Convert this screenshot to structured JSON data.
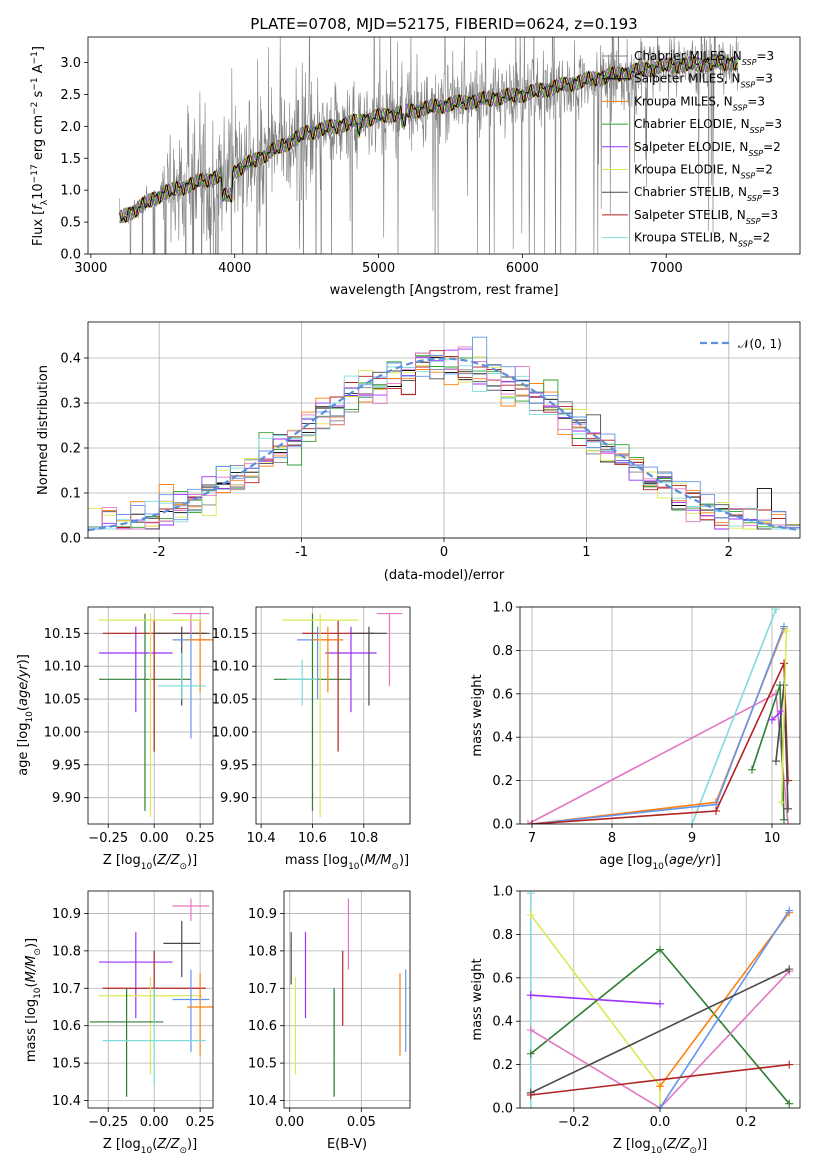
{
  "chart_data": [
    {
      "id": "spectrum",
      "type": "line",
      "title": "PLATE=0708, MJD=52175, FIBERID=0624, z=0.193",
      "xlabel": "wavelength [Angstrom, rest frame]",
      "ylabel": "Flux [$f_\\lambda 10^{-17}$ erg cm$^{-2}$ s$^{-1}$ A$^{-1}$]",
      "ylabel_text": "Flux [fλ10⁻¹⁷ erg cm⁻² s⁻¹ A⁻¹]",
      "xlim": [
        2980,
        7930
      ],
      "ylim": [
        0,
        3.4
      ],
      "xticks": [
        3000,
        4000,
        5000,
        6000,
        7000
      ],
      "yticks": [
        0.0,
        0.5,
        1.0,
        1.5,
        2.0,
        2.5,
        3.0
      ],
      "legend_loc": "upper right",
      "series": [
        {
          "name": "Chabrier MILES, N$_{SSP}$=3",
          "label": "Chabrier MILES, N",
          "sub": "SSP",
          "eq": "=3",
          "color": "#808080"
        },
        {
          "name": "Salpeter MILES, N$_{SSP}$=3",
          "label": "Salpeter MILES, N",
          "sub": "SSP",
          "eq": "=3",
          "color": "#000000"
        },
        {
          "name": "Kroupa MILES, N$_{SSP}$=3",
          "label": "Kroupa MILES, N",
          "sub": "SSP",
          "eq": "=3",
          "color": "#ff7f0e"
        },
        {
          "name": "Chabrier ELODIE, N$_{SSP}$=3",
          "label": "Chabrier ELODIE, N",
          "sub": "SSP",
          "eq": "=3",
          "color": "#2ca02c"
        },
        {
          "name": "Salpeter ELODIE, N$_{SSP}$=2",
          "label": "Salpeter ELODIE, N",
          "sub": "SSP",
          "eq": "=2",
          "color": "#9b30ff"
        },
        {
          "name": "Kroupa ELODIE, N$_{SSP}$=2",
          "label": "Kroupa ELODIE, N",
          "sub": "SSP",
          "eq": "=2",
          "color": "#dbe855"
        },
        {
          "name": "Chabrier STELIB, N$_{SSP}$=3",
          "label": "Chabrier STELIB, N",
          "sub": "SSP",
          "eq": "=3",
          "color": "#4a4a4a"
        },
        {
          "name": "Salpeter STELIB, N$_{SSP}$=3",
          "label": "Salpeter STELIB, N",
          "sub": "SSP",
          "eq": "=3",
          "color": "#b22222"
        },
        {
          "name": "Kroupa STELIB, N$_{SSP}$=2",
          "label": "Kroupa STELIB, N",
          "sub": "SSP",
          "eq": "=2",
          "color": "#7fdcdc"
        }
      ],
      "continuum": {
        "x": [
          3200,
          3500,
          4000,
          4500,
          5000,
          5500,
          6000,
          6500,
          7000,
          7500
        ],
        "y": [
          0.55,
          0.95,
          1.3,
          1.9,
          2.15,
          2.35,
          2.5,
          2.75,
          2.95,
          3.0
        ]
      }
    },
    {
      "id": "residuals",
      "type": "step-histogram",
      "xlabel": "(data-model)/error",
      "ylabel": "Normed distribution",
      "xlim": [
        -2.5,
        2.5
      ],
      "ylim": [
        0,
        0.48
      ],
      "xticks": [
        -2,
        -1,
        0,
        1,
        2
      ],
      "yticks": [
        0.0,
        0.1,
        0.2,
        0.3,
        0.4
      ],
      "grid": true,
      "legend_loc": "upper right",
      "reference": {
        "name": "$\\mathcal{N}(0,1)$",
        "label": "𝒩(0, 1)",
        "color": "#5b8fd9",
        "style": "dashed"
      },
      "bin_width": 0.1,
      "bins_start": -2.5,
      "hist_colors": [
        "#808080",
        "#000000",
        "#ff7f0e",
        "#2ca02c",
        "#9b30ff",
        "#dbe855",
        "#4a4a4a",
        "#b22222",
        "#7fdcdc",
        "#e377c2",
        "#6495ed"
      ]
    },
    {
      "id": "age-vs-Z",
      "type": "errorbar",
      "xlabel": "Z [log$_{10}$(Z/Z$_\\odot$)]",
      "ylabel": "age [log$_{10}$(age/yr)]",
      "xlim": [
        -0.36,
        0.32
      ],
      "ylim": [
        9.86,
        10.19
      ],
      "xticks": [
        -0.25,
        0.0,
        0.25
      ],
      "xticklabels": [
        "−0.25",
        "0.00",
        "0.25"
      ],
      "yticks": [
        9.9,
        9.95,
        10.0,
        10.05,
        10.1,
        10.15
      ],
      "grid": true,
      "points": [
        {
          "x": -0.05,
          "y": 10.08,
          "xerr": 0.25,
          "ylo": 9.88,
          "yhi": 10.18,
          "color": "#2e7d32"
        },
        {
          "x": -0.1,
          "y": 10.12,
          "xerr": 0.2,
          "ylo": 10.03,
          "yhi": 10.16,
          "color": "#9b30ff"
        },
        {
          "x": 0.0,
          "y": 10.15,
          "xerr": 0.28,
          "ylo": 9.97,
          "yhi": 10.17,
          "color": "#b22222"
        },
        {
          "x": 0.15,
          "y": 10.15,
          "xerr": 0.15,
          "ylo": 10.04,
          "yhi": 10.16,
          "color": "#4a4a4a"
        },
        {
          "x": 0.2,
          "y": 10.14,
          "xerr": 0.1,
          "ylo": 9.99,
          "yhi": 10.17,
          "color": "#6495ed"
        },
        {
          "x": 0.2,
          "y": 10.18,
          "xerr": 0.1,
          "ylo": 10.15,
          "yhi": 10.18,
          "color": "#e377c2"
        },
        {
          "x": 0.25,
          "y": 10.14,
          "xerr": 0.07,
          "ylo": 10.06,
          "yhi": 10.17,
          "color": "#ff7f0e"
        },
        {
          "x": -0.02,
          "y": 10.17,
          "xerr": 0.28,
          "ylo": 9.87,
          "yhi": 10.18,
          "color": "#dbe855"
        },
        {
          "x": 0.15,
          "y": 10.07,
          "xerr": 0.13,
          "ylo": 10.05,
          "yhi": 10.12,
          "color": "#7fdcdc"
        }
      ]
    },
    {
      "id": "age-vs-mass",
      "type": "errorbar",
      "xlabel": "mass [log$_{10}$(M/M$_\\odot$)]",
      "ylabel": "",
      "xlim": [
        10.38,
        10.98
      ],
      "ylim": [
        9.86,
        10.19
      ],
      "xticks": [
        10.4,
        10.6,
        10.8
      ],
      "yticks": [
        9.9,
        9.95,
        10.0,
        10.05,
        10.1,
        10.15
      ],
      "grid": true,
      "points": [
        {
          "x": 10.6,
          "y": 10.08,
          "xerr": 0.15,
          "ylo": 9.88,
          "yhi": 10.18,
          "color": "#2e7d32"
        },
        {
          "x": 10.75,
          "y": 10.12,
          "xerr": 0.1,
          "ylo": 10.03,
          "yhi": 10.16,
          "color": "#9b30ff"
        },
        {
          "x": 10.7,
          "y": 10.15,
          "xerr": 0.14,
          "ylo": 9.97,
          "yhi": 10.17,
          "color": "#b22222"
        },
        {
          "x": 10.82,
          "y": 10.15,
          "xerr": 0.07,
          "ylo": 10.04,
          "yhi": 10.16,
          "color": "#4a4a4a"
        },
        {
          "x": 10.62,
          "y": 10.14,
          "xerr": 0.08,
          "ylo": 10.05,
          "yhi": 10.16,
          "color": "#6495ed"
        },
        {
          "x": 10.9,
          "y": 10.18,
          "xerr": 0.05,
          "ylo": 10.07,
          "yhi": 10.18,
          "color": "#e377c2"
        },
        {
          "x": 10.66,
          "y": 10.14,
          "xerr": 0.06,
          "ylo": 10.06,
          "yhi": 10.16,
          "color": "#ff7f0e"
        },
        {
          "x": 10.63,
          "y": 10.17,
          "xerr": 0.15,
          "ylo": 9.87,
          "yhi": 10.18,
          "color": "#dbe855"
        },
        {
          "x": 10.56,
          "y": 10.08,
          "xerr": 0.06,
          "ylo": 10.04,
          "yhi": 10.11,
          "color": "#7fdcdc"
        }
      ]
    },
    {
      "id": "mass-weight-vs-age",
      "type": "line",
      "xlabel": "age [log$_{10}$(age/yr)]",
      "ylabel": "mass weight",
      "xlim": [
        6.85,
        10.35
      ],
      "ylim": [
        0,
        1.0
      ],
      "xticks": [
        7,
        8,
        9,
        10
      ],
      "yticks": [
        0.0,
        0.2,
        0.4,
        0.6,
        0.8,
        1.0
      ],
      "grid": true,
      "series": [
        {
          "color": "#e377c2",
          "x": [
            6.95,
            10.05,
            10.2
          ],
          "y": [
            0.0,
            0.6,
            0.0
          ]
        },
        {
          "color": "#7fdcdc",
          "x": [
            9.0,
            10.05
          ],
          "y": [
            0.0,
            0.99
          ]
        },
        {
          "color": "#ff7f0e",
          "x": [
            7.0,
            9.3,
            10.15
          ],
          "y": [
            0.0,
            0.1,
            0.9
          ]
        },
        {
          "color": "#6495ed",
          "x": [
            7.0,
            9.3,
            10.15
          ],
          "y": [
            0.0,
            0.09,
            0.91
          ]
        },
        {
          "color": "#b22222",
          "x": [
            7.0,
            9.3,
            10.15,
            10.2
          ],
          "y": [
            0.0,
            0.06,
            0.74,
            0.2
          ]
        },
        {
          "color": "#2e7d32",
          "x": [
            9.75,
            10.1,
            10.15
          ],
          "y": [
            0.25,
            0.64,
            0.02
          ]
        },
        {
          "color": "#4a4a4a",
          "x": [
            10.05,
            10.15,
            10.2
          ],
          "y": [
            0.29,
            0.64,
            0.07
          ]
        },
        {
          "color": "#9b30ff",
          "x": [
            10.0,
            10.12
          ],
          "y": [
            0.48,
            0.52
          ]
        },
        {
          "color": "#dbe855",
          "x": [
            10.12,
            10.18
          ],
          "y": [
            0.1,
            0.89
          ]
        }
      ]
    },
    {
      "id": "mass-vs-Z",
      "type": "errorbar",
      "xlabel": "Z [log$_{10}$(Z/Z$_\\odot$)]",
      "ylabel": "mass [log$_{10}$(M/M$_\\odot$)]",
      "xlim": [
        -0.36,
        0.32
      ],
      "ylim": [
        10.38,
        10.96
      ],
      "xticks": [
        -0.25,
        0.0,
        0.25
      ],
      "xticklabels": [
        "−0.25",
        "0.00",
        "0.25"
      ],
      "yticks": [
        10.4,
        10.5,
        10.6,
        10.7,
        10.8,
        10.9
      ],
      "grid": true,
      "points": [
        {
          "x": -0.1,
          "y": 10.77,
          "xerr": 0.2,
          "ylo": 10.62,
          "yhi": 10.85,
          "color": "#9b30ff"
        },
        {
          "x": 0.15,
          "y": 10.82,
          "xerr": 0.1,
          "ylo": 10.73,
          "yhi": 10.88,
          "color": "#4a4a4a"
        },
        {
          "x": 0.2,
          "y": 10.92,
          "xerr": 0.1,
          "ylo": 10.88,
          "yhi": 10.94,
          "color": "#e377c2"
        },
        {
          "x": 0.0,
          "y": 10.7,
          "xerr": 0.28,
          "ylo": 10.61,
          "yhi": 10.8,
          "color": "#b22222"
        },
        {
          "x": -0.02,
          "y": 10.68,
          "xerr": 0.28,
          "ylo": 10.47,
          "yhi": 10.73,
          "color": "#dbe855"
        },
        {
          "x": -0.15,
          "y": 10.61,
          "xerr": 0.2,
          "ylo": 10.41,
          "yhi": 10.7,
          "color": "#2e7d32"
        },
        {
          "x": 0.2,
          "y": 10.67,
          "xerr": 0.1,
          "ylo": 10.53,
          "yhi": 10.75,
          "color": "#6495ed"
        },
        {
          "x": 0.25,
          "y": 10.65,
          "xerr": 0.07,
          "ylo": 10.52,
          "yhi": 10.74,
          "color": "#ff7f0e"
        },
        {
          "x": 0.0,
          "y": 10.56,
          "xerr": 0.28,
          "ylo": 10.44,
          "yhi": 10.7,
          "color": "#7fdcdc"
        }
      ]
    },
    {
      "id": "mass-vs-EBV",
      "type": "errorbar",
      "xlabel": "E(B-V)",
      "ylabel": "",
      "xlim": [
        -0.004,
        0.084
      ],
      "ylim": [
        10.38,
        10.96
      ],
      "xticks": [
        0.0,
        0.05
      ],
      "xticklabels": [
        "0.00",
        "0.05"
      ],
      "yticks": [
        10.4,
        10.5,
        10.6,
        10.7,
        10.8,
        10.9
      ],
      "grid": true,
      "points": [
        {
          "x": 0.001,
          "ylo": 10.71,
          "yhi": 10.85,
          "color": "#4a4a4a"
        },
        {
          "x": 0.004,
          "ylo": 10.47,
          "yhi": 10.73,
          "color": "#dbe855"
        },
        {
          "x": 0.011,
          "ylo": 10.62,
          "yhi": 10.85,
          "color": "#9b30ff"
        },
        {
          "x": 0.031,
          "ylo": 10.41,
          "yhi": 10.7,
          "color": "#7fdcdc"
        },
        {
          "x": 0.031,
          "ylo": 10.41,
          "yhi": 10.7,
          "color": "#2e7d32"
        },
        {
          "x": 0.037,
          "ylo": 10.6,
          "yhi": 10.8,
          "color": "#b22222"
        },
        {
          "x": 0.041,
          "ylo": 10.75,
          "yhi": 10.94,
          "color": "#e377c2"
        },
        {
          "x": 0.077,
          "ylo": 10.52,
          "yhi": 10.74,
          "color": "#ff7f0e"
        },
        {
          "x": 0.081,
          "ylo": 10.53,
          "yhi": 10.75,
          "color": "#6495ed"
        }
      ]
    },
    {
      "id": "mass-weight-vs-Z",
      "type": "line",
      "xlabel": "Z [log$_{10}$(Z/Z$_\\odot$)]",
      "ylabel": "mass weight",
      "xlim": [
        -0.325,
        0.325
      ],
      "ylim": [
        0,
        1.0
      ],
      "xticks": [
        -0.2,
        0.0,
        0.2
      ],
      "xticklabels": [
        "−0.2",
        "0.0",
        "0.2"
      ],
      "yticks": [
        0.0,
        0.2,
        0.4,
        0.6,
        0.8,
        1.0
      ],
      "grid": true,
      "series": [
        {
          "color": "#7fdcdc",
          "x": [
            -0.3,
            -0.3
          ],
          "y": [
            0.0,
            0.99
          ]
        },
        {
          "color": "#dbe855",
          "x": [
            -0.3,
            0.0,
            0.0
          ],
          "y": [
            0.89,
            0.1,
            0.0
          ]
        },
        {
          "color": "#2e7d32",
          "x": [
            -0.3,
            0.0,
            0.3
          ],
          "y": [
            0.25,
            0.73,
            0.02
          ]
        },
        {
          "color": "#9b30ff",
          "x": [
            -0.3,
            0.0
          ],
          "y": [
            0.52,
            0.48
          ]
        },
        {
          "color": "#e377c2",
          "x": [
            -0.3,
            0.0,
            0.3
          ],
          "y": [
            0.36,
            0.0,
            0.63
          ]
        },
        {
          "color": "#ff7f0e",
          "x": [
            0.0,
            0.3
          ],
          "y": [
            0.1,
            0.9
          ]
        },
        {
          "color": "#6495ed",
          "x": [
            0.0,
            0.3
          ],
          "y": [
            0.0,
            0.91
          ]
        },
        {
          "color": "#4a4a4a",
          "x": [
            -0.3,
            0.3
          ],
          "y": [
            0.07,
            0.64
          ]
        },
        {
          "color": "#b22222",
          "x": [
            -0.3,
            0.3
          ],
          "y": [
            0.06,
            0.2
          ]
        }
      ]
    }
  ]
}
